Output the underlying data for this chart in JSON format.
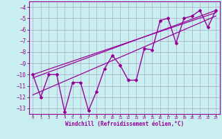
{
  "xlabel": "Windchill (Refroidissement éolien,°C)",
  "bg_color": "#c8eef0",
  "grid_color": "#aaaacc",
  "line_color": "#990099",
  "xlim": [
    -0.5,
    23.5
  ],
  "ylim": [
    -13.5,
    -3.5
  ],
  "yticks": [
    -13,
    -12,
    -11,
    -10,
    -9,
    -8,
    -7,
    -6,
    -5,
    -4
  ],
  "xticks": [
    0,
    1,
    2,
    3,
    4,
    5,
    6,
    7,
    8,
    9,
    10,
    11,
    12,
    13,
    14,
    15,
    16,
    17,
    18,
    19,
    20,
    21,
    22,
    23
  ],
  "main_data_x": [
    0,
    1,
    2,
    3,
    4,
    5,
    6,
    7,
    8,
    9,
    10,
    11,
    12,
    13,
    14,
    15,
    16,
    17,
    18,
    19,
    20,
    21,
    22,
    23
  ],
  "main_data_y": [
    -10,
    -12,
    -10,
    -10,
    -13.3,
    -10.7,
    -10.7,
    -13.2,
    -11.5,
    -9.5,
    -8.3,
    -9.2,
    -10.5,
    -10.5,
    -7.7,
    -7.8,
    -5.2,
    -5.0,
    -7.2,
    -5.0,
    -4.8,
    -4.3,
    -5.8,
    -4.3
  ],
  "line1_x": [
    0,
    23
  ],
  "line1_y": [
    -10.0,
    -4.5
  ],
  "line2_x": [
    0,
    23
  ],
  "line2_y": [
    -10.3,
    -4.3
  ],
  "line3_x": [
    0,
    23
  ],
  "line3_y": [
    -11.8,
    -4.8
  ]
}
